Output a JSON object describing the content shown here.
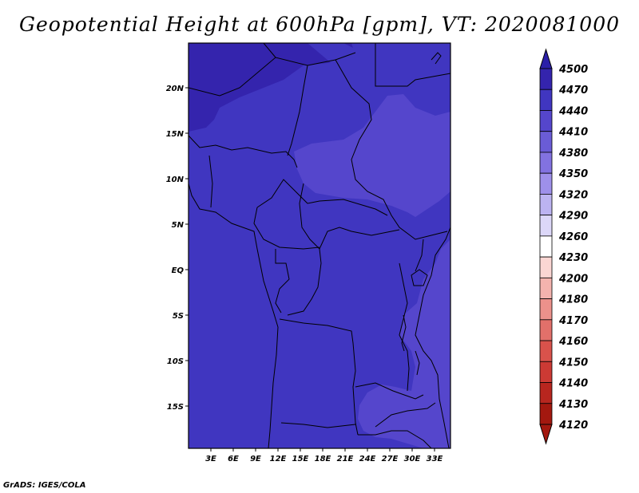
{
  "title": "Geopotential Height at 600hPa [gpm], VT: 2020081000",
  "credit": "GrADS: IGES/COLA",
  "map": {
    "lat_labels": [
      "20N",
      "15N",
      "10N",
      "5N",
      "EQ",
      "5S",
      "10S",
      "15S"
    ],
    "lon_labels": [
      "3E",
      "6E",
      "9E",
      "12E",
      "15E",
      "18E",
      "21E",
      "24E",
      "27E",
      "30E",
      "33E"
    ],
    "region_levels": {
      "base": 4440,
      "north_band": 4470,
      "upper_north": 4440,
      "central_east_low": 4410,
      "southeast_low": 4410
    }
  },
  "colorbar": {
    "levels": [
      "4500",
      "4470",
      "4440",
      "4410",
      "4380",
      "4350",
      "4320",
      "4290",
      "4260",
      "4230",
      "4200",
      "4180",
      "4170",
      "4160",
      "4150",
      "4140",
      "4130",
      "4120"
    ],
    "colors": [
      "#2b1fa8",
      "#3424ad",
      "#4036c0",
      "#5546cc",
      "#6a5cd6",
      "#8272e0",
      "#9e90ea",
      "#bcb3f1",
      "#dcd7f8",
      "#ffffff",
      "#fbd6d3",
      "#f4b3ae",
      "#ec918b",
      "#e2706a",
      "#d9524b",
      "#cc3a34",
      "#b8261f",
      "#a3180f"
    ]
  }
}
